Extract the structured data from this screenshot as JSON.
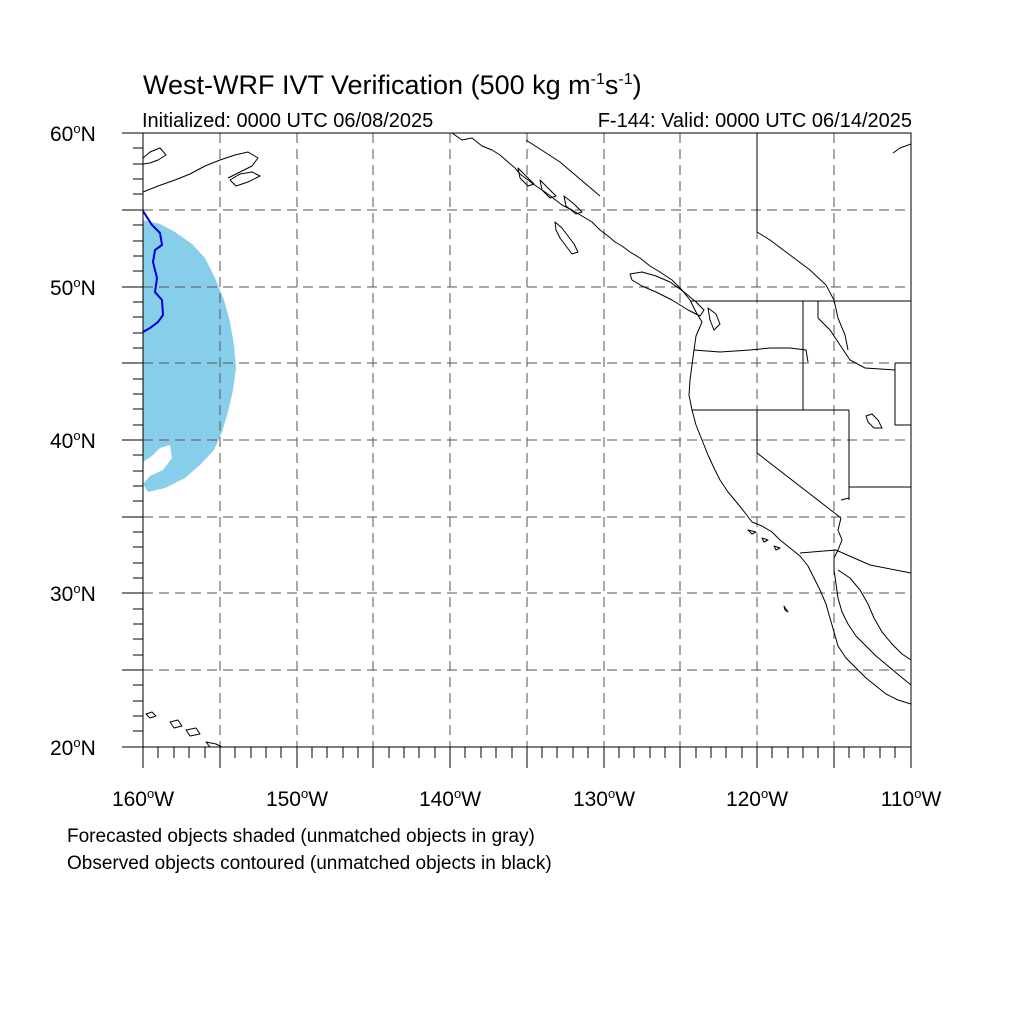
{
  "title": {
    "main": "West-WRF IVT Verification (500 kg m",
    "sup1": "-1",
    "mid": "s",
    "sup2": "-1",
    "end": ")"
  },
  "subtitle": {
    "left": "Initialized: 0000 UTC 06/08/2025",
    "right": "F-144: Valid: 0000 UTC 06/14/2025"
  },
  "axes": {
    "lat_labels": [
      {
        "value": "60",
        "suffix": "N"
      },
      {
        "value": "50",
        "suffix": "N"
      },
      {
        "value": "40",
        "suffix": "N"
      },
      {
        "value": "30",
        "suffix": "N"
      },
      {
        "value": "20",
        "suffix": "N"
      }
    ],
    "lon_labels": [
      {
        "value": "160",
        "suffix": "W"
      },
      {
        "value": "150",
        "suffix": "W"
      },
      {
        "value": "140",
        "suffix": "W"
      },
      {
        "value": "130",
        "suffix": "W"
      },
      {
        "value": "120",
        "suffix": "W"
      },
      {
        "value": "110",
        "suffix": "W"
      }
    ],
    "lat_range": [
      20,
      60
    ],
    "lon_range": [
      -160,
      -110
    ],
    "gridlines": "dashed every 5 degrees"
  },
  "legend": {
    "line1": "Forecasted objects shaded (unmatched objects in gray)",
    "line2": "Observed objects contoured (unmatched objects in black)"
  },
  "colors": {
    "forecast_object_fill": "#87CEEB",
    "observed_object_contour": "#0000DD",
    "coastline": "#000000",
    "grid": "#555555"
  }
}
